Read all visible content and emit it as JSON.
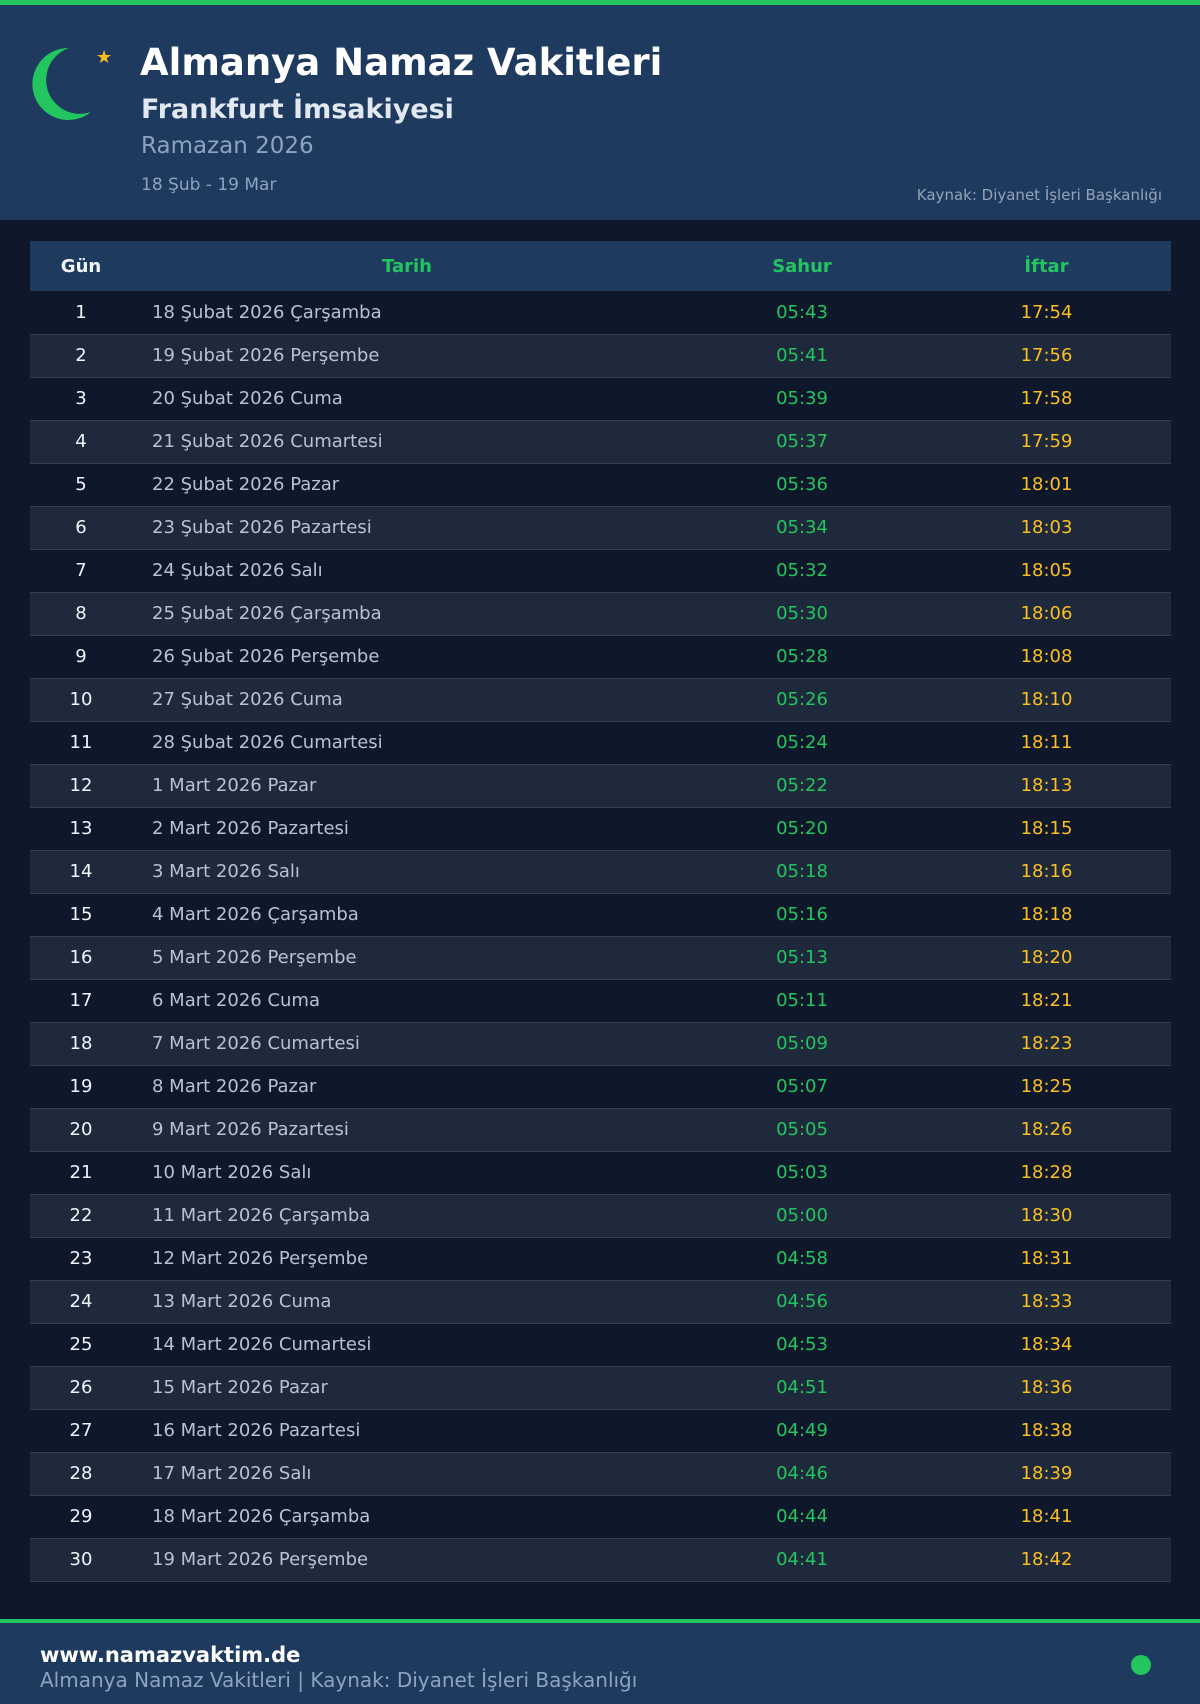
{
  "colors": {
    "accent": "#22c55e",
    "iftar": "#fbbf24",
    "header_bg": "#1e3a5f",
    "page_bg": "#0f172a"
  },
  "header": {
    "icon": "crescent-star-icon",
    "title": "Almanya Namaz Vakitleri",
    "subtitle": "Frankfurt İmsakiyesi",
    "season": "Ramazan 2026",
    "range": "18 Şub - 19 Mar",
    "source": "Kaynak: Diyanet İşleri Başkanlığı"
  },
  "table": {
    "columns": [
      "Gün",
      "Tarih",
      "Sahur",
      "İftar"
    ],
    "rows": [
      [
        "1",
        "18 Şubat 2026 Çarşamba",
        "05:43",
        "17:54"
      ],
      [
        "2",
        "19 Şubat 2026 Perşembe",
        "05:41",
        "17:56"
      ],
      [
        "3",
        "20 Şubat 2026 Cuma",
        "05:39",
        "17:58"
      ],
      [
        "4",
        "21 Şubat 2026 Cumartesi",
        "05:37",
        "17:59"
      ],
      [
        "5",
        "22 Şubat 2026 Pazar",
        "05:36",
        "18:01"
      ],
      [
        "6",
        "23 Şubat 2026 Pazartesi",
        "05:34",
        "18:03"
      ],
      [
        "7",
        "24 Şubat 2026 Salı",
        "05:32",
        "18:05"
      ],
      [
        "8",
        "25 Şubat 2026 Çarşamba",
        "05:30",
        "18:06"
      ],
      [
        "9",
        "26 Şubat 2026 Perşembe",
        "05:28",
        "18:08"
      ],
      [
        "10",
        "27 Şubat 2026 Cuma",
        "05:26",
        "18:10"
      ],
      [
        "11",
        "28 Şubat 2026 Cumartesi",
        "05:24",
        "18:11"
      ],
      [
        "12",
        "1 Mart 2026 Pazar",
        "05:22",
        "18:13"
      ],
      [
        "13",
        "2 Mart 2026 Pazartesi",
        "05:20",
        "18:15"
      ],
      [
        "14",
        "3 Mart 2026 Salı",
        "05:18",
        "18:16"
      ],
      [
        "15",
        "4 Mart 2026 Çarşamba",
        "05:16",
        "18:18"
      ],
      [
        "16",
        "5 Mart 2026 Perşembe",
        "05:13",
        "18:20"
      ],
      [
        "17",
        "6 Mart 2026 Cuma",
        "05:11",
        "18:21"
      ],
      [
        "18",
        "7 Mart 2026 Cumartesi",
        "05:09",
        "18:23"
      ],
      [
        "19",
        "8 Mart 2026 Pazar",
        "05:07",
        "18:25"
      ],
      [
        "20",
        "9 Mart 2026 Pazartesi",
        "05:05",
        "18:26"
      ],
      [
        "21",
        "10 Mart 2026 Salı",
        "05:03",
        "18:28"
      ],
      [
        "22",
        "11 Mart 2026 Çarşamba",
        "05:00",
        "18:30"
      ],
      [
        "23",
        "12 Mart 2026 Perşembe",
        "04:58",
        "18:31"
      ],
      [
        "24",
        "13 Mart 2026 Cuma",
        "04:56",
        "18:33"
      ],
      [
        "25",
        "14 Mart 2026 Cumartesi",
        "04:53",
        "18:34"
      ],
      [
        "26",
        "15 Mart 2026 Pazar",
        "04:51",
        "18:36"
      ],
      [
        "27",
        "16 Mart 2026 Pazartesi",
        "04:49",
        "18:38"
      ],
      [
        "28",
        "17 Mart 2026 Salı",
        "04:46",
        "18:39"
      ],
      [
        "29",
        "18 Mart 2026 Çarşamba",
        "04:44",
        "18:41"
      ],
      [
        "30",
        "19 Mart 2026 Perşembe",
        "04:41",
        "18:42"
      ]
    ]
  },
  "footer": {
    "site": "www.namazvaktim.de",
    "text": "Almanya Namaz Vakitleri | Kaynak: Diyanet İşleri Başkanlığı"
  }
}
